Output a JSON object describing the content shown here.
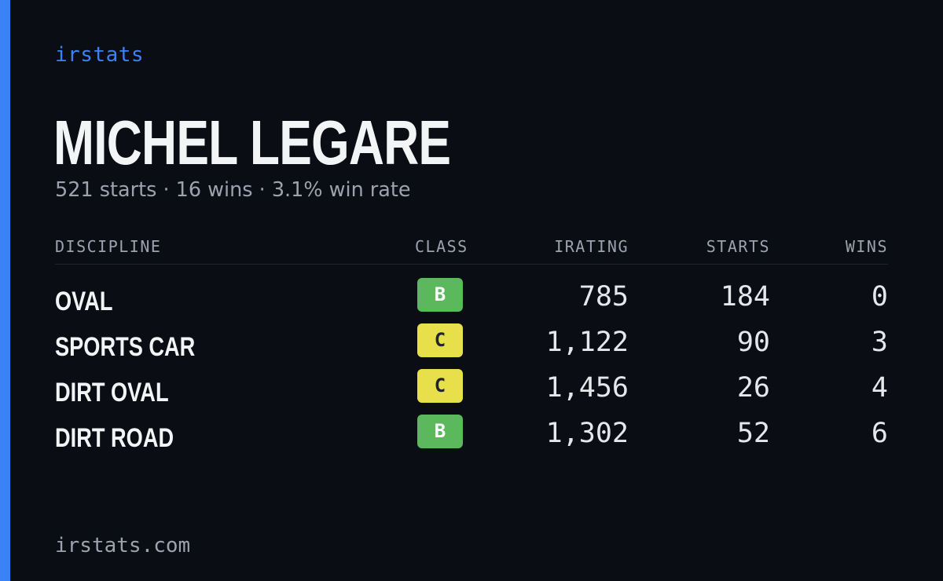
{
  "brand": "irstats",
  "driver_name": "MICHEL LEGARE",
  "summary": "521 starts · 16 wins · 3.1% win rate",
  "colors": {
    "accent": "#3b82f6",
    "background": "#0a0d14",
    "class_B": "#5cb85c",
    "class_C": "#e8e04a"
  },
  "table": {
    "headers": {
      "discipline": "DISCIPLINE",
      "class": "CLASS",
      "irating": "IRATING",
      "starts": "STARTS",
      "wins": "WINS"
    },
    "rows": [
      {
        "discipline": "OVAL",
        "class": "B",
        "irating": "785",
        "starts": "184",
        "wins": "0"
      },
      {
        "discipline": "SPORTS CAR",
        "class": "C",
        "irating": "1,122",
        "starts": "90",
        "wins": "3"
      },
      {
        "discipline": "DIRT OVAL",
        "class": "C",
        "irating": "1,456",
        "starts": "26",
        "wins": "4"
      },
      {
        "discipline": "DIRT ROAD",
        "class": "B",
        "irating": "1,302",
        "starts": "52",
        "wins": "6"
      }
    ]
  },
  "footer": "irstats.com"
}
